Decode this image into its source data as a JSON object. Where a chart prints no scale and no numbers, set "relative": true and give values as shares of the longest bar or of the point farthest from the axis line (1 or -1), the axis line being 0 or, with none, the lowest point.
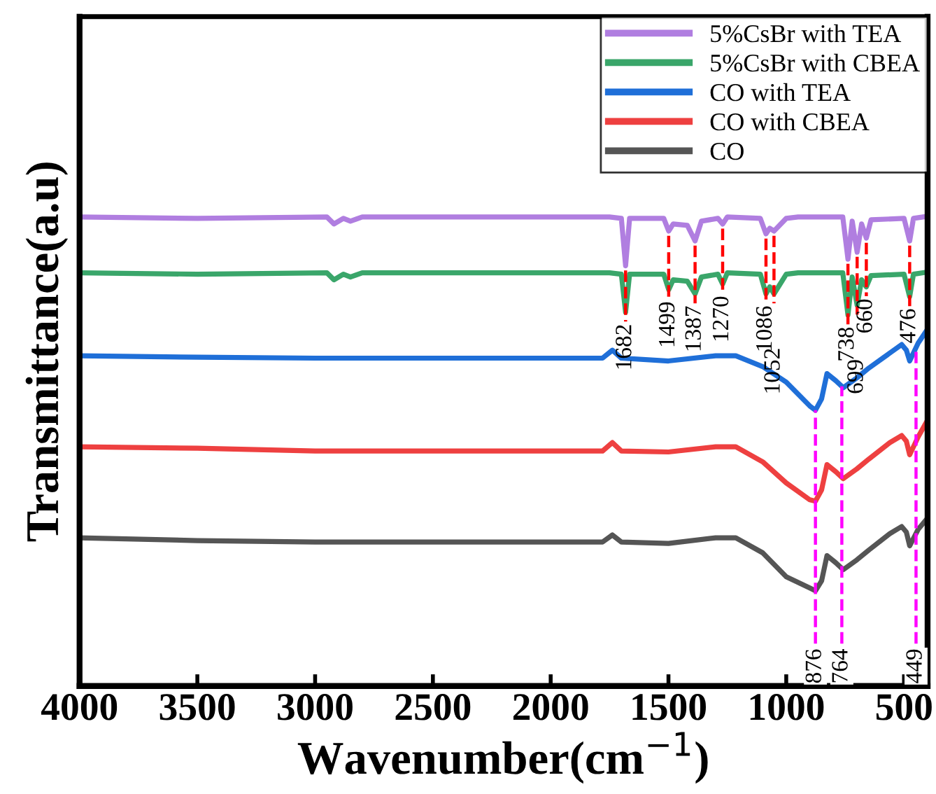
{
  "chart_data": {
    "type": "line",
    "relative": true,
    "xlabel": "Wavenumber(cm$^{−1}$)",
    "ylabel": "Transmittance(a.u)",
    "xlim": [
      4000,
      400
    ],
    "xticks": [
      4000,
      3500,
      3000,
      2500,
      2000,
      1500,
      1000,
      500
    ],
    "tick_labels": "x",
    "legend": "top right",
    "grid": false,
    "line_style": "solid",
    "marker": "none",
    "series": [
      {
        "name": "5%CsBr with TEA",
        "color": "#b07ee0",
        "x": [
          4000,
          3500,
          2950,
          2920,
          2880,
          2850,
          2800,
          2000,
          1750,
          1700,
          1682,
          1665,
          1520,
          1499,
          1480,
          1420,
          1387,
          1360,
          1290,
          1270,
          1250,
          1110,
          1086,
          1070,
          1052,
          1000,
          950,
          760,
          738,
          720,
          699,
          680,
          660,
          640,
          500,
          476,
          460,
          420
        ],
        "values": [
          1.0,
          0.997,
          1.0,
          0.985,
          0.997,
          0.991,
          1.0,
          1.0,
          1.0,
          0.997,
          0.896,
          0.997,
          0.997,
          0.97,
          0.985,
          0.982,
          0.949,
          0.991,
          0.997,
          0.985,
          1.0,
          0.997,
          0.964,
          0.976,
          0.97,
          0.997,
          1.0,
          1.0,
          0.91,
          0.991,
          0.925,
          0.985,
          0.955,
          0.994,
          0.997,
          0.949,
          0.997,
          1.0
        ]
      },
      {
        "name": "5%CsBr with CBEA",
        "color": "#3aa66a",
        "x": [
          4000,
          3500,
          2950,
          2920,
          2880,
          2850,
          2800,
          1750,
          1700,
          1682,
          1665,
          1520,
          1499,
          1480,
          1420,
          1387,
          1360,
          1290,
          1270,
          1250,
          1110,
          1086,
          1070,
          1052,
          1000,
          950,
          760,
          738,
          720,
          699,
          680,
          660,
          640,
          500,
          476,
          460,
          420
        ],
        "values": [
          0.881,
          0.878,
          0.881,
          0.866,
          0.878,
          0.872,
          0.881,
          0.881,
          0.878,
          0.797,
          0.878,
          0.878,
          0.845,
          0.866,
          0.863,
          0.836,
          0.872,
          0.878,
          0.857,
          0.881,
          0.878,
          0.836,
          0.851,
          0.836,
          0.878,
          0.881,
          0.881,
          0.791,
          0.872,
          0.812,
          0.866,
          0.851,
          0.875,
          0.878,
          0.83,
          0.878,
          0.881
        ]
      },
      {
        "name": "CO with TEA",
        "color": "#1f6fd8",
        "x": [
          4000,
          3500,
          3000,
          2000,
          1780,
          1738,
          1700,
          1500,
          1300,
          1214,
          1100,
          1000,
          900,
          876,
          850,
          827,
          790,
          758,
          700,
          649,
          560,
          510,
          490,
          476,
          440,
          400
        ],
        "values": [
          0.704,
          0.701,
          0.699,
          0.699,
          0.699,
          0.716,
          0.699,
          0.693,
          0.704,
          0.704,
          0.681,
          0.648,
          0.597,
          0.588,
          0.612,
          0.666,
          0.651,
          0.636,
          0.657,
          0.678,
          0.71,
          0.728,
          0.716,
          0.693,
          0.731,
          0.761
        ]
      },
      {
        "name": "CO with CBEA",
        "color": "#ee4040",
        "x": [
          4000,
          3500,
          3000,
          2000,
          1780,
          1738,
          1700,
          1500,
          1300,
          1214,
          1100,
          1000,
          900,
          876,
          850,
          827,
          790,
          758,
          700,
          649,
          560,
          510,
          490,
          476,
          440,
          400
        ],
        "values": [
          0.51,
          0.507,
          0.501,
          0.501,
          0.501,
          0.519,
          0.501,
          0.499,
          0.51,
          0.51,
          0.478,
          0.433,
          0.397,
          0.394,
          0.418,
          0.472,
          0.457,
          0.442,
          0.463,
          0.484,
          0.519,
          0.534,
          0.522,
          0.493,
          0.531,
          0.567
        ]
      },
      {
        "name": "CO",
        "color": "#555555",
        "x": [
          4000,
          3500,
          3000,
          2000,
          1780,
          1738,
          1700,
          1500,
          1300,
          1214,
          1100,
          1000,
          900,
          876,
          850,
          827,
          790,
          758,
          700,
          649,
          560,
          510,
          490,
          476,
          440,
          400
        ],
        "values": [
          0.316,
          0.31,
          0.307,
          0.307,
          0.307,
          0.322,
          0.307,
          0.304,
          0.316,
          0.316,
          0.284,
          0.233,
          0.209,
          0.203,
          0.224,
          0.278,
          0.263,
          0.248,
          0.269,
          0.29,
          0.325,
          0.34,
          0.328,
          0.299,
          0.334,
          0.358
        ]
      }
    ],
    "ref_lines": [
      {
        "axis": "x",
        "value": 1682,
        "label": "1682",
        "color": "#ff0000",
        "line_style": "dashed"
      },
      {
        "axis": "x",
        "value": 1499,
        "label": "1499",
        "color": "#ff0000",
        "line_style": "dashed"
      },
      {
        "axis": "x",
        "value": 1387,
        "label": "1387",
        "color": "#ff0000",
        "line_style": "dashed"
      },
      {
        "axis": "x",
        "value": 1270,
        "label": "1270",
        "color": "#ff0000",
        "line_style": "dashed"
      },
      {
        "axis": "x",
        "value": 1086,
        "label": "1086",
        "color": "#ff0000",
        "line_style": "dashed"
      },
      {
        "axis": "x",
        "value": 1052,
        "label": "1052",
        "color": "#ff0000",
        "line_style": "dashed"
      },
      {
        "axis": "x",
        "value": 738,
        "label": "738",
        "color": "#ff0000",
        "line_style": "dashed"
      },
      {
        "axis": "x",
        "value": 699,
        "label": "699",
        "color": "#ff0000",
        "line_style": "dashed"
      },
      {
        "axis": "x",
        "value": 660,
        "label": "660",
        "color": "#ff0000",
        "line_style": "dashed"
      },
      {
        "axis": "x",
        "value": 476,
        "label": "476",
        "color": "#ff0000",
        "line_style": "dashed"
      },
      {
        "axis": "x",
        "value": 876,
        "label": "876",
        "color": "#ff00ff",
        "line_style": "dashed"
      },
      {
        "axis": "x",
        "value": 764,
        "label": "764",
        "color": "#ff00ff",
        "line_style": "dashed"
      },
      {
        "axis": "x",
        "value": 449,
        "label": "449",
        "color": "#ff00ff",
        "line_style": "dashed"
      }
    ]
  }
}
